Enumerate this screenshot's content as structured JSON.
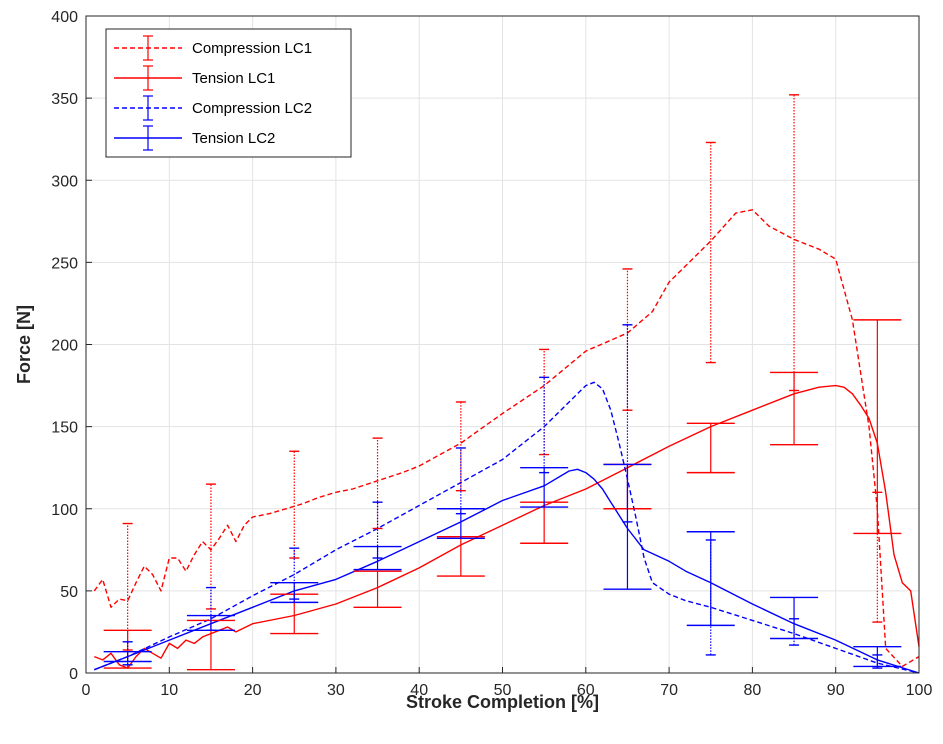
{
  "chart_data": {
    "type": "line",
    "xlabel": "Stroke Completion [%]",
    "ylabel": "Force [N]",
    "xlim": [
      0,
      100
    ],
    "ylim": [
      0,
      400
    ],
    "xticks": [
      0,
      10,
      20,
      30,
      40,
      50,
      60,
      70,
      80,
      90,
      100
    ],
    "yticks": [
      0,
      50,
      100,
      150,
      200,
      250,
      300,
      350,
      400
    ],
    "grid": true,
    "legend_position": "top-left",
    "series": [
      {
        "name": "Compression LC1",
        "color": "#ff0000",
        "linestyle": "dashed",
        "x": [
          1,
          2,
          3,
          4,
          5,
          6,
          7,
          8,
          9,
          10,
          11,
          12,
          13,
          14,
          15,
          16,
          17,
          18,
          19,
          20,
          22,
          24,
          26,
          28,
          30,
          32,
          35,
          38,
          40,
          45,
          50,
          55,
          60,
          65,
          68,
          70,
          75,
          78,
          80,
          82,
          85,
          88,
          90,
          92,
          94,
          95,
          96,
          98,
          100
        ],
        "y": [
          50,
          57,
          40,
          45,
          44,
          55,
          65,
          60,
          50,
          70,
          70,
          62,
          72,
          80,
          75,
          82,
          90,
          80,
          90,
          95,
          97,
          100,
          103,
          107,
          110,
          112,
          117,
          122,
          126,
          140,
          158,
          175,
          196,
          207,
          220,
          238,
          263,
          280,
          282,
          272,
          264,
          258,
          252,
          215,
          150,
          100,
          15,
          4,
          10
        ]
      },
      {
        "name": "Tension LC1",
        "color": "#ff0000",
        "linestyle": "solid",
        "x": [
          1,
          2,
          3,
          4,
          5,
          6,
          7,
          8,
          9,
          10,
          11,
          12,
          13,
          14,
          15,
          16,
          17,
          18,
          20,
          25,
          30,
          35,
          40,
          45,
          50,
          55,
          60,
          65,
          70,
          75,
          80,
          85,
          88,
          90,
          91,
          92,
          93,
          94,
          95,
          96,
          97,
          98,
          99,
          100
        ],
        "y": [
          10,
          8,
          12,
          5,
          3,
          10,
          15,
          12,
          9,
          18,
          15,
          20,
          18,
          22,
          24,
          26,
          28,
          25,
          30,
          35,
          42,
          52,
          64,
          78,
          90,
          102,
          112,
          125,
          138,
          150,
          160,
          170,
          174,
          175,
          174,
          170,
          163,
          155,
          140,
          110,
          72,
          55,
          50,
          16
        ]
      },
      {
        "name": "Compression LC2",
        "color": "#0000ff",
        "linestyle": "dashed",
        "x": [
          1,
          5,
          10,
          15,
          20,
          25,
          30,
          35,
          40,
          45,
          50,
          55,
          58,
          60,
          61,
          62,
          63,
          64,
          65,
          66,
          67,
          68,
          70,
          72,
          75,
          80,
          85,
          90,
          95,
          100
        ],
        "y": [
          2,
          10,
          22,
          33,
          47,
          60,
          75,
          88,
          102,
          116,
          130,
          150,
          165,
          175,
          177,
          173,
          160,
          140,
          118,
          95,
          70,
          55,
          48,
          44,
          40,
          32,
          24,
          15,
          6,
          0
        ]
      },
      {
        "name": "Tension LC2",
        "color": "#0000ff",
        "linestyle": "solid",
        "x": [
          1,
          5,
          10,
          15,
          20,
          25,
          30,
          35,
          40,
          45,
          50,
          55,
          58,
          59,
          60,
          61,
          62,
          63,
          65,
          67,
          70,
          72,
          75,
          80,
          85,
          90,
          95,
          100
        ],
        "y": [
          2,
          10,
          20,
          30,
          40,
          50,
          57,
          68,
          80,
          92,
          105,
          114,
          123,
          124,
          122,
          118,
          112,
          104,
          88,
          75,
          68,
          62,
          55,
          42,
          30,
          20,
          8,
          0
        ]
      }
    ],
    "error_bars": [
      {
        "series": "Compression LC1",
        "x": 5,
        "low": 14,
        "high": 91
      },
      {
        "series": "Compression LC1",
        "x": 15,
        "low": 39,
        "high": 115
      },
      {
        "series": "Compression LC1",
        "x": 25,
        "low": 70,
        "high": 135
      },
      {
        "series": "Compression LC1",
        "x": 35,
        "low": 88,
        "high": 143
      },
      {
        "series": "Compression LC1",
        "x": 45,
        "low": 111,
        "high": 165
      },
      {
        "series": "Compression LC1",
        "x": 55,
        "low": 133,
        "high": 197
      },
      {
        "series": "Compression LC1",
        "x": 65,
        "low": 160,
        "high": 246
      },
      {
        "series": "Compression LC1",
        "x": 75,
        "low": 189,
        "high": 323
      },
      {
        "series": "Compression LC1",
        "x": 85,
        "low": 172,
        "high": 352
      },
      {
        "series": "Compression LC1",
        "x": 95,
        "low": 31,
        "high": 110
      },
      {
        "series": "Tension LC1",
        "x": 5,
        "low": 3,
        "high": 26
      },
      {
        "series": "Tension LC1",
        "x": 15,
        "low": 2,
        "high": 32
      },
      {
        "series": "Tension LC1",
        "x": 25,
        "low": 24,
        "high": 48
      },
      {
        "series": "Tension LC1",
        "x": 35,
        "low": 40,
        "high": 62
      },
      {
        "series": "Tension LC1",
        "x": 45,
        "low": 59,
        "high": 83
      },
      {
        "series": "Tension LC1",
        "x": 55,
        "low": 79,
        "high": 104
      },
      {
        "series": "Tension LC1",
        "x": 65,
        "low": 100,
        "high": 127
      },
      {
        "series": "Tension LC1",
        "x": 75,
        "low": 122,
        "high": 152
      },
      {
        "series": "Tension LC1",
        "x": 85,
        "low": 139,
        "high": 183
      },
      {
        "series": "Tension LC1",
        "x": 95,
        "low": 85,
        "high": 215
      },
      {
        "series": "Compression LC2",
        "x": 5,
        "low": 5,
        "high": 19
      },
      {
        "series": "Compression LC2",
        "x": 15,
        "low": 26,
        "high": 52
      },
      {
        "series": "Compression LC2",
        "x": 25,
        "low": 45,
        "high": 76
      },
      {
        "series": "Compression LC2",
        "x": 35,
        "low": 70,
        "high": 104
      },
      {
        "series": "Compression LC2",
        "x": 45,
        "low": 97,
        "high": 137
      },
      {
        "series": "Compression LC2",
        "x": 55,
        "low": 122,
        "high": 180
      },
      {
        "series": "Compression LC2",
        "x": 65,
        "low": 92,
        "high": 212
      },
      {
        "series": "Compression LC2",
        "x": 75,
        "low": 11,
        "high": 81
      },
      {
        "series": "Compression LC2",
        "x": 85,
        "low": 17,
        "high": 33
      },
      {
        "series": "Compression LC2",
        "x": 95,
        "low": 3,
        "high": 11
      },
      {
        "series": "Tension LC2",
        "x": 5,
        "low": 7,
        "high": 13
      },
      {
        "series": "Tension LC2",
        "x": 15,
        "low": 26,
        "high": 35
      },
      {
        "series": "Tension LC2",
        "x": 25,
        "low": 43,
        "high": 55
      },
      {
        "series": "Tension LC2",
        "x": 35,
        "low": 63,
        "high": 77
      },
      {
        "series": "Tension LC2",
        "x": 45,
        "low": 82,
        "high": 100
      },
      {
        "series": "Tension LC2",
        "x": 55,
        "low": 101,
        "high": 125
      },
      {
        "series": "Tension LC2",
        "x": 65,
        "low": 51,
        "high": 127
      },
      {
        "series": "Tension LC2",
        "x": 75,
        "low": 29,
        "high": 86
      },
      {
        "series": "Tension LC2",
        "x": 85,
        "low": 21,
        "high": 46
      },
      {
        "series": "Tension LC2",
        "x": 95,
        "low": 4,
        "high": 16
      }
    ]
  }
}
